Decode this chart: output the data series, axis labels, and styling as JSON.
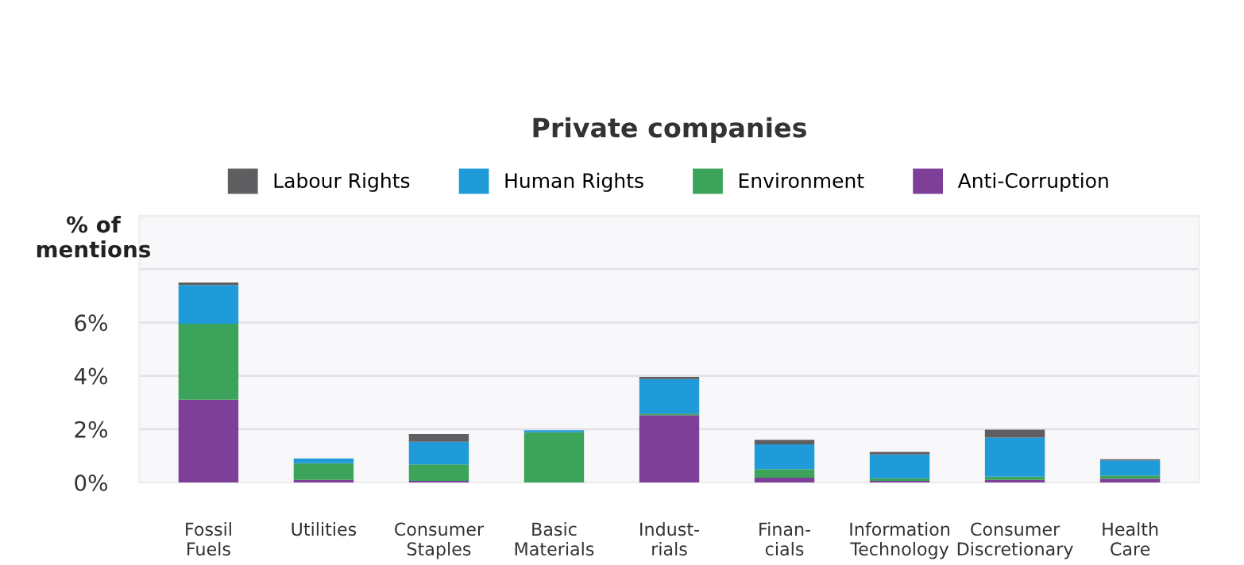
{
  "chart_data": {
    "type": "bar",
    "title": "Private companies",
    "ylabel": "% of\nmentions",
    "stacked": true,
    "categories": [
      "Fossil\nFuels",
      "Utilities",
      "Consumer\nStaples",
      "Basic\nMaterials",
      "Indust-\nrials",
      "Finan-\ncials",
      "Information\nTechnology",
      "Consumer\nDiscretionary",
      "Health\nCare"
    ],
    "series": [
      {
        "name": "Anti-Corruption",
        "color": "#7e3f98",
        "values": [
          3.1,
          0.1,
          0.06,
          0,
          2.52,
          0.18,
          0.06,
          0.1,
          0.14
        ]
      },
      {
        "name": "Environment",
        "color": "#3ba45a",
        "values": [
          2.85,
          0.62,
          0.62,
          1.88,
          0.06,
          0.32,
          0.1,
          0.12,
          0.12
        ]
      },
      {
        "name": "Human Rights",
        "color": "#1f9bd9",
        "values": [
          1.45,
          0.18,
          0.85,
          0.08,
          1.3,
          0.93,
          0.89,
          1.46,
          0.57
        ]
      },
      {
        "name": "Labour Rights",
        "color": "#5f5f61",
        "values": [
          0.1,
          0,
          0.29,
          0,
          0.08,
          0.17,
          0.1,
          0.3,
          0.04
        ]
      }
    ],
    "ylim": [
      0,
      10
    ],
    "yticks": [
      {
        "value": 0,
        "label": "0%"
      },
      {
        "value": 2,
        "label": "2%"
      },
      {
        "value": 4,
        "label": "4%"
      },
      {
        "value": 6,
        "label": "6%"
      },
      {
        "value": 8,
        "label": null
      },
      {
        "value": 10,
        "label": null
      }
    ],
    "grid": "y",
    "legend": "top"
  }
}
